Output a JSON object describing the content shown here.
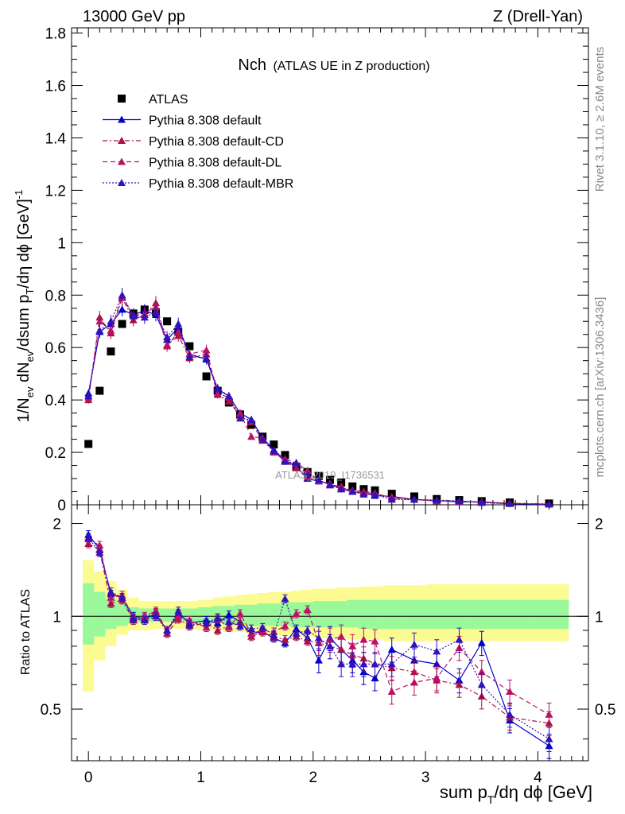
{
  "header": {
    "left": "13000 GeV pp",
    "right": "Z (Drell-Yan)"
  },
  "side_text": {
    "rivet": "Rivet 3.1.10, ≥ 2.6M events",
    "mcplots": "mcplots.cern.ch [arXiv:1306.3436]"
  },
  "watermark": "ATLAS_2019_I1736531",
  "chart_data": {
    "type": "scatter",
    "title": {
      "main": "Nch",
      "sub": "(ATLAS UE in Z production)"
    },
    "xlabel": "sum p_T/dη dϕ [GeV]",
    "ylabel": "1/N_ev dN_ev/dsum p_T/dη dϕ [GeV]^-1",
    "ratio_ylabel": "Ratio to ATLAS",
    "xlim": [
      -0.15,
      4.45
    ],
    "ylim": [
      0,
      1.82
    ],
    "ratio_ylim": [
      0.34,
      2.3
    ],
    "x_ticks": [
      "0",
      "1",
      "2",
      "3",
      "4"
    ],
    "y_ticks": [
      "0",
      "0.2",
      "0.4",
      "0.6",
      "0.8",
      "1",
      "1.2",
      "1.4",
      "1.6",
      "1.8"
    ],
    "ratio_ticks": [
      "0.5",
      "1",
      "2"
    ],
    "x": [
      0.0,
      0.1,
      0.2,
      0.3,
      0.4,
      0.5,
      0.6,
      0.7,
      0.8,
      0.9,
      1.05,
      1.15,
      1.25,
      1.35,
      1.45,
      1.55,
      1.65,
      1.75,
      1.85,
      1.95,
      2.05,
      2.15,
      2.25,
      2.35,
      2.45,
      2.55,
      2.7,
      2.9,
      3.1,
      3.3,
      3.5,
      3.75,
      4.1
    ],
    "series": [
      {
        "name": "ATLAS",
        "color": "#000000",
        "marker": "square",
        "values": [
          0.232,
          0.435,
          0.585,
          0.69,
          0.73,
          0.745,
          0.735,
          0.7,
          0.66,
          0.605,
          0.49,
          0.435,
          0.39,
          0.345,
          0.305,
          0.26,
          0.23,
          0.19,
          0.145,
          0.125,
          0.11,
          0.095,
          0.085,
          0.07,
          0.06,
          0.055,
          0.042,
          0.032,
          0.022,
          0.018,
          0.014,
          0.009,
          0.005
        ]
      },
      {
        "name": "Pythia 8.308 default",
        "color": "#0000cc",
        "marker": "triangle",
        "dash": "solid",
        "values": [
          0.425,
          0.66,
          0.69,
          0.745,
          0.725,
          0.74,
          0.725,
          0.63,
          0.675,
          0.575,
          0.555,
          0.44,
          0.415,
          0.35,
          0.325,
          0.255,
          0.21,
          0.17,
          0.145,
          0.1,
          0.09,
          0.08,
          0.06,
          0.05,
          0.045,
          0.035,
          0.032,
          0.02,
          0.016,
          0.011,
          0.011,
          0.004,
          0.002
        ]
      },
      {
        "name": "Pythia 8.308 default-CD",
        "color": "#aa1144",
        "marker": "triangle",
        "dash": "6,3,2,3",
        "values": [
          0.4,
          0.715,
          0.655,
          0.79,
          0.705,
          0.725,
          0.77,
          0.61,
          0.645,
          0.56,
          0.575,
          0.42,
          0.395,
          0.34,
          0.315,
          0.245,
          0.205,
          0.165,
          0.14,
          0.105,
          0.095,
          0.075,
          0.07,
          0.05,
          0.045,
          0.04,
          0.03,
          0.02,
          0.016,
          0.013,
          0.011,
          0.006,
          0.003
        ]
      },
      {
        "name": "Pythia 8.308 default-DL",
        "color": "#bb1166",
        "marker": "triangle",
        "dash": "6,4",
        "values": [
          0.41,
          0.7,
          0.665,
          0.795,
          0.72,
          0.73,
          0.755,
          0.605,
          0.66,
          0.575,
          0.59,
          0.425,
          0.41,
          0.35,
          0.26,
          0.255,
          0.2,
          0.175,
          0.16,
          0.13,
          0.09,
          0.08,
          0.065,
          0.055,
          0.05,
          0.045,
          0.025,
          0.02,
          0.014,
          0.014,
          0.009,
          0.006,
          0.002
        ]
      },
      {
        "name": "Pythia 8.308 default-MBR",
        "color": "#3311bb",
        "marker": "triangle",
        "dash": "2,2",
        "values": [
          0.415,
          0.665,
          0.7,
          0.8,
          0.72,
          0.715,
          0.735,
          0.64,
          0.69,
          0.565,
          0.56,
          0.445,
          0.415,
          0.33,
          0.325,
          0.25,
          0.205,
          0.165,
          0.16,
          0.115,
          0.095,
          0.075,
          0.06,
          0.05,
          0.04,
          0.04,
          0.02,
          0.02,
          0.018,
          0.015,
          0.008,
          0.004,
          0.002
        ]
      }
    ],
    "ratio": {
      "band_yellow": [
        [
          0.57,
          1.52
        ],
        [
          0.72,
          1.4
        ],
        [
          0.8,
          1.3
        ],
        [
          0.87,
          1.22
        ],
        [
          0.9,
          1.15
        ],
        [
          0.9,
          1.12
        ],
        [
          0.91,
          1.12
        ],
        [
          0.91,
          1.12
        ],
        [
          0.91,
          1.12
        ],
        [
          0.91,
          1.12
        ],
        [
          0.9,
          1.13
        ],
        [
          0.9,
          1.15
        ],
        [
          0.89,
          1.16
        ],
        [
          0.89,
          1.17
        ],
        [
          0.88,
          1.18
        ],
        [
          0.88,
          1.19
        ],
        [
          0.87,
          1.2
        ],
        [
          0.87,
          1.2
        ],
        [
          0.86,
          1.21
        ],
        [
          0.86,
          1.22
        ],
        [
          0.85,
          1.23
        ],
        [
          0.85,
          1.23
        ],
        [
          0.85,
          1.24
        ],
        [
          0.84,
          1.24
        ],
        [
          0.84,
          1.25
        ],
        [
          0.84,
          1.25
        ],
        [
          0.83,
          1.26
        ],
        [
          0.83,
          1.26
        ],
        [
          0.83,
          1.27
        ],
        [
          0.83,
          1.27
        ],
        [
          0.83,
          1.27
        ],
        [
          0.83,
          1.27
        ],
        [
          0.83,
          1.27
        ]
      ],
      "band_green": [
        [
          0.81,
          1.28
        ],
        [
          0.86,
          1.2
        ],
        [
          0.91,
          1.14
        ],
        [
          0.93,
          1.1
        ],
        [
          0.95,
          1.07
        ],
        [
          0.96,
          1.06
        ],
        [
          0.96,
          1.06
        ],
        [
          0.96,
          1.06
        ],
        [
          0.96,
          1.06
        ],
        [
          0.96,
          1.06
        ],
        [
          0.95,
          1.07
        ],
        [
          0.95,
          1.08
        ],
        [
          0.94,
          1.08
        ],
        [
          0.94,
          1.09
        ],
        [
          0.93,
          1.09
        ],
        [
          0.93,
          1.1
        ],
        [
          0.93,
          1.1
        ],
        [
          0.93,
          1.11
        ],
        [
          0.92,
          1.11
        ],
        [
          0.92,
          1.11
        ],
        [
          0.92,
          1.12
        ],
        [
          0.92,
          1.12
        ],
        [
          0.92,
          1.12
        ],
        [
          0.92,
          1.13
        ],
        [
          0.91,
          1.13
        ],
        [
          0.91,
          1.13
        ],
        [
          0.91,
          1.13
        ],
        [
          0.91,
          1.13
        ],
        [
          0.91,
          1.13
        ],
        [
          0.91,
          1.13
        ],
        [
          0.91,
          1.13
        ],
        [
          0.91,
          1.13
        ],
        [
          0.91,
          1.13
        ]
      ],
      "series": [
        {
          "name": "Pythia 8.308 default",
          "values": [
            1.84,
            1.65,
            1.18,
            1.15,
            1.0,
            0.98,
            1.02,
            0.9,
            1.02,
            0.95,
            0.97,
            0.95,
            1.01,
            0.96,
            0.88,
            0.89,
            0.85,
            0.82,
            0.91,
            0.85,
            0.72,
            0.85,
            0.78,
            0.72,
            0.66,
            0.63,
            0.78,
            0.72,
            0.7,
            0.62,
            0.82,
            0.46,
            0.38
          ]
        },
        {
          "name": "Pythia 8.308 default-CD",
          "values": [
            1.72,
            1.64,
            1.1,
            1.13,
            0.97,
            0.99,
            1.03,
            0.88,
            0.98,
            0.93,
            0.95,
            0.9,
            0.93,
            0.96,
            0.86,
            0.89,
            0.86,
            0.84,
            0.86,
            0.83,
            0.82,
            0.8,
            0.78,
            0.75,
            0.73,
            0.7,
            0.68,
            0.66,
            0.62,
            0.6,
            0.55,
            0.47,
            0.45
          ]
        },
        {
          "name": "Pythia 8.308 default-DL",
          "values": [
            1.78,
            1.7,
            1.15,
            1.17,
            0.99,
            1.0,
            1.04,
            0.9,
            1.0,
            0.97,
            0.92,
            0.98,
            0.92,
            1.02,
            0.88,
            0.9,
            0.89,
            0.93,
            1.02,
            1.05,
            0.82,
            0.84,
            0.86,
            0.8,
            0.84,
            0.83,
            0.57,
            0.61,
            0.63,
            0.79,
            0.66,
            0.57,
            0.48
          ]
        },
        {
          "name": "Pythia 8.308 default-MBR",
          "values": [
            1.8,
            1.61,
            1.2,
            1.15,
            0.98,
            0.97,
            1.0,
            0.9,
            1.04,
            0.94,
            0.95,
            0.99,
            0.96,
            0.93,
            0.91,
            0.92,
            0.87,
            1.14,
            0.88,
            0.9,
            0.85,
            0.8,
            0.7,
            0.7,
            0.7,
            0.7,
            0.7,
            0.81,
            0.77,
            0.84,
            0.6,
            0.48,
            0.4
          ]
        }
      ]
    }
  }
}
